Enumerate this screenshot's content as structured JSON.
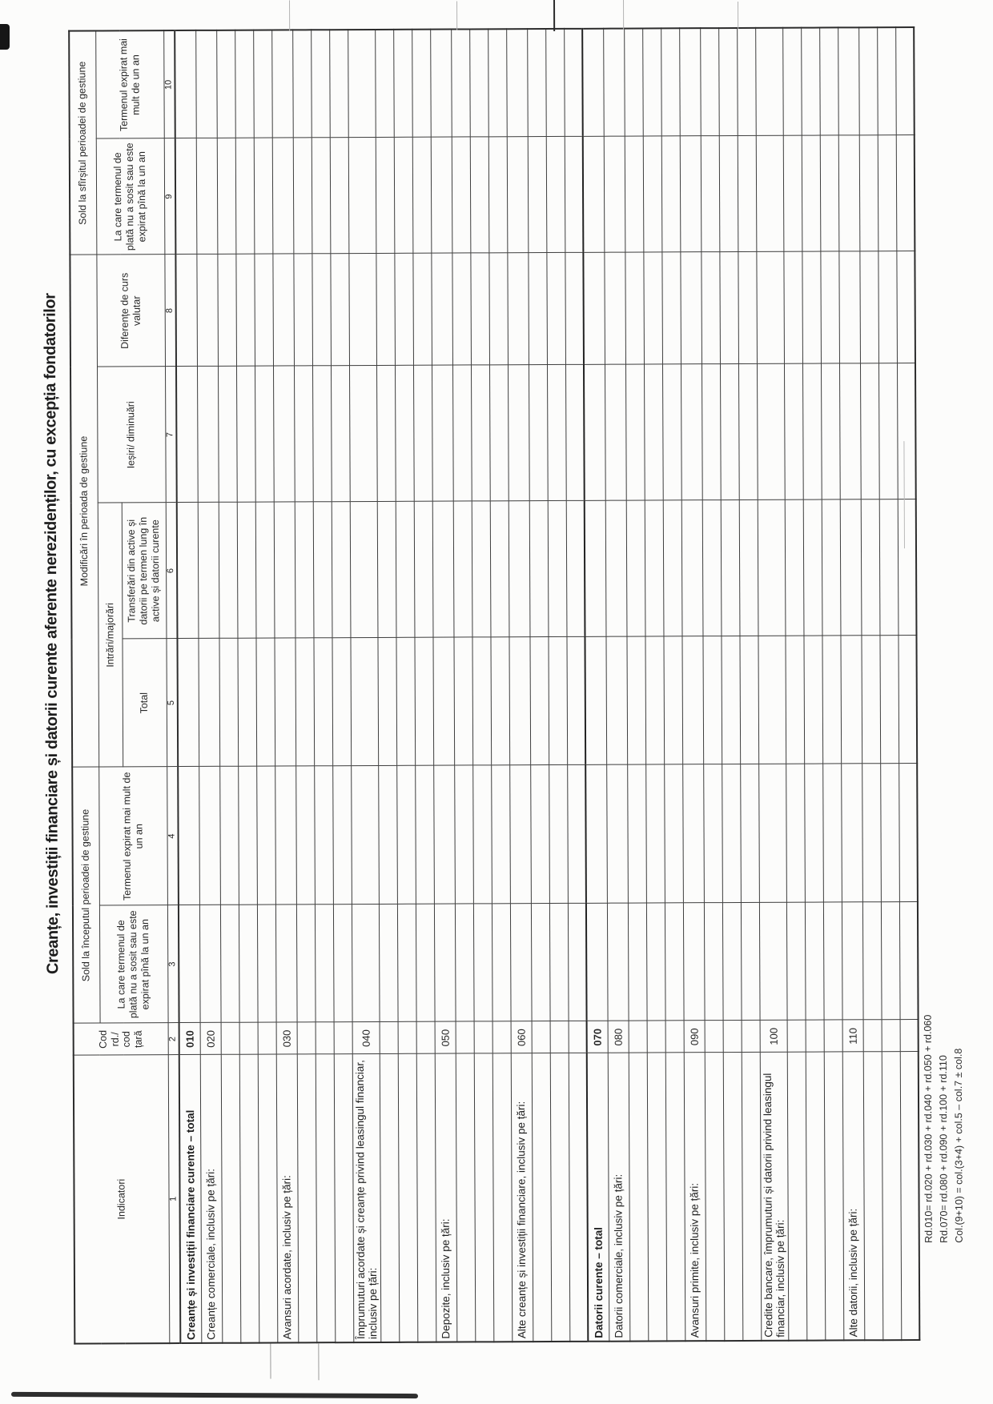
{
  "document": {
    "title": "Creanțe, investiții financiare și datorii curente aferente nerezidenților, cu excepția fondatorilor",
    "table": {
      "headers": {
        "indicatori": "Indicatori",
        "cod": "Cod rd./ cod țară",
        "sold_inceput": "Sold la începutul perioadei de gestiune",
        "modificari": "Modificări în perioada de gestiune",
        "sold_sfirsit": "Sold la sfîrșitul perioadei de gestiune",
        "intrari": "Intrări/majorări",
        "col3": "La care termenul de plată nu a sosit sau este expirat pînă la un an",
        "col4": "Termenul expirat mai mult de un an",
        "col5": "Total",
        "col6": "Transferări din active și datorii pe termen lung în active și datorii curente",
        "col7": "Ieșiri/ diminuări",
        "col8": "Diferențe de curs valutar",
        "col9": "La care termenul de plată nu a sosit sau este expirat pînă la un an",
        "col10": "Termenul expirat mai mult de un an",
        "column_numbers": [
          "1",
          "2",
          "3",
          "4",
          "5",
          "6",
          "7",
          "8",
          "9",
          "10"
        ]
      },
      "data_columns_count": 8,
      "rows": [
        {
          "label": "Creanțe și investiții financiare curente – total",
          "code": "010",
          "bold": true,
          "tall": false,
          "section": false,
          "empty_after": 0
        },
        {
          "label": "Creanțe comerciale, inclusiv pe țări:",
          "code": "020",
          "bold": false,
          "tall": false,
          "section": false,
          "empty_after": 3
        },
        {
          "label": "Avansuri acordate, inclusiv pe țări:",
          "code": "030",
          "bold": false,
          "tall": false,
          "section": false,
          "empty_after": 3
        },
        {
          "label": "Împrumuturi acordate și creanțe privind leasingul financiar, inclusiv pe țări:",
          "code": "040",
          "bold": false,
          "tall": true,
          "section": false,
          "empty_after": 3
        },
        {
          "label": "Depozite, inclusiv pe țări:",
          "code": "050",
          "bold": false,
          "tall": false,
          "section": false,
          "empty_after": 3
        },
        {
          "label": "Alte creanțe și investiții financiare, inclusiv pe țări:",
          "code": "060",
          "bold": false,
          "tall": false,
          "section": false,
          "empty_after": 3
        },
        {
          "label": "Datorii curente – total",
          "code": "070",
          "bold": true,
          "tall": false,
          "section": true,
          "empty_after": 0
        },
        {
          "label": "Datorii comerciale, inclusiv pe țări:",
          "code": "080",
          "bold": false,
          "tall": false,
          "section": false,
          "empty_after": 3
        },
        {
          "label": "Avansuri primite, inclusiv pe țări:",
          "code": "090",
          "bold": false,
          "tall": false,
          "section": false,
          "empty_after": 3
        },
        {
          "label": "Credite bancare, împrumuturi și datorii privind leasingul financiar, inclusiv pe țări:",
          "code": "100",
          "bold": false,
          "tall": true,
          "section": false,
          "empty_after": 3
        },
        {
          "label": "Alte datorii, inclusiv pe țări:",
          "code": "110",
          "bold": false,
          "tall": false,
          "section": false,
          "empty_after": 3
        }
      ]
    },
    "footnotes": [
      "Rd.010= rd.020 + rd.030 + rd.040 + rd.050 + rd.060",
      "Rd.070= rd.080 + rd.090 + rd.100 + rd.110",
      "Col.(9+10) = col.(3+4) + col.5 – col.7 ± col.8"
    ]
  }
}
